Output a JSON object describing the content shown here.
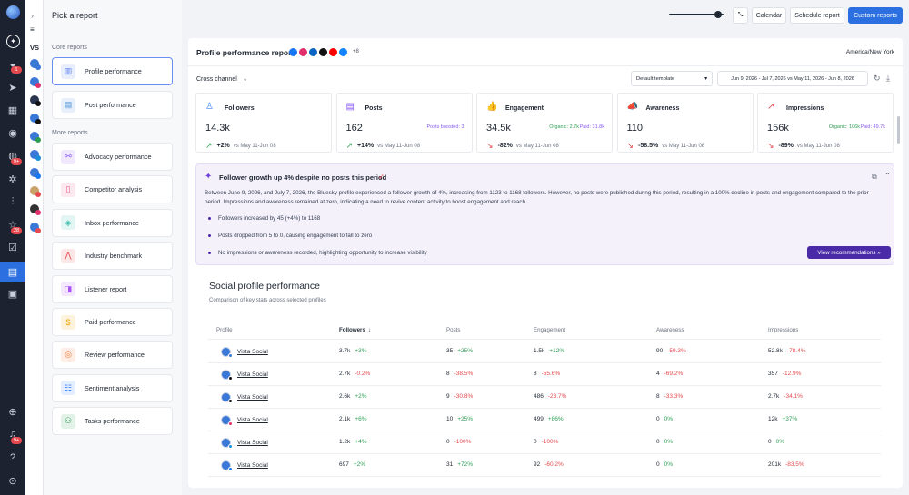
{
  "header": {
    "title": "Pick a report",
    "calendar": "Calendar",
    "schedule": "Schedule report",
    "custom": "Custom reports"
  },
  "rail_badges": {
    "b1": "1",
    "b2": "9+",
    "b3": "28",
    "b4": "9+"
  },
  "profile_strip": {
    "label": "VS"
  },
  "menu": {
    "core_title": "Core reports",
    "more_title": "More reports",
    "core": [
      {
        "label": "Profile performance",
        "icon": "profile-report-icon",
        "color": "#5b7cf0"
      },
      {
        "label": "Post performance",
        "icon": "post-report-icon",
        "color": "#4a8fd8"
      }
    ],
    "more": [
      {
        "label": "Advocacy performance",
        "icon": "advocacy-icon",
        "color": "#8b5cf6"
      },
      {
        "label": "Competitor analysis",
        "icon": "competitor-icon",
        "color": "#e85d8a"
      },
      {
        "label": "Inbox performance",
        "icon": "inbox-icon",
        "color": "#2fb8a6"
      },
      {
        "label": "Industry benchmark",
        "icon": "benchmark-icon",
        "color": "#e5484d"
      },
      {
        "label": "Listener report",
        "icon": "listener-icon",
        "color": "#a855f7"
      },
      {
        "label": "Paid performance",
        "icon": "paid-icon",
        "color": "#f0a500"
      },
      {
        "label": "Review performance",
        "icon": "review-icon",
        "color": "#f07a3a"
      },
      {
        "label": "Sentiment analysis",
        "icon": "sentiment-icon",
        "color": "#3b82f6"
      },
      {
        "label": "Tasks performance",
        "icon": "tasks-icon",
        "color": "#2e9e55"
      }
    ]
  },
  "report": {
    "title": "Profile performance report",
    "network_more": "+8",
    "timezone": "America/New York",
    "channel": "Cross channel",
    "template": "Default template",
    "date_range": "Jun 9, 2026 - Jul 7, 2026 vs May 11, 2026 - Jun 8, 2026"
  },
  "cards": [
    {
      "title": "Followers",
      "value": "14.3k",
      "note": "",
      "note2": "",
      "delta": "+2%",
      "compare": "vs May 11-Jun 08",
      "trend": "up",
      "color": "#3b82f6"
    },
    {
      "title": "Posts",
      "value": "162",
      "note": "Posts boosted: 3",
      "note2": "",
      "delta": "+14%",
      "compare": "vs May 11-Jun 08",
      "trend": "up",
      "color": "#8b5cf6"
    },
    {
      "title": "Engagement",
      "value": "34.5k",
      "note": "Organic: 2.7k",
      "note2": "Paid: 31.8k",
      "delta": "-82%",
      "compare": "vs May 11-Jun 08",
      "trend": "down",
      "color": "#2e9e55"
    },
    {
      "title": "Awareness",
      "value": "110",
      "note": "",
      "note2": "",
      "delta": "-58.5%",
      "compare": "vs May 11-Jun 08",
      "trend": "down",
      "color": "#6d5bd0"
    },
    {
      "title": "Impressions",
      "value": "156k",
      "note": "Organic: 106k",
      "note2": "Paid: 49.7k",
      "delta": "-89%",
      "compare": "vs May 11-Jun 08",
      "trend": "down",
      "color": "#e5484d"
    }
  ],
  "insight": {
    "title": "Follower growth up 4% despite no posts this period",
    "body": "Between June 9, 2026, and July 7, 2026, the Bluesky profile experienced a follower growth of 4%, increasing from 1123 to 1168 followers. However, no posts were published during this period, resulting in a 100% decline in posts and engagement compared to the prior period. Impressions and awareness remained at zero, indicating a need to revive content activity to boost engagement and reach.",
    "bullets": [
      "Followers increased by 45 (+4%) to 1168",
      "Posts dropped from 5 to 0, causing engagement to fall to zero",
      "No impressions or awareness recorded, highlighting opportunity to increase visibility"
    ],
    "button": "View recommendations »"
  },
  "social": {
    "title": "Social profile performance",
    "subtitle": "Comparison of key stats across selected profiles",
    "columns": [
      "Profile",
      "Followers",
      "Posts",
      "Engagement",
      "Awareness",
      "Impressions"
    ],
    "rows": [
      {
        "profile": "Vista Social",
        "net": "#3a78d8",
        "followers": "3.7k",
        "followers_d": "+3%",
        "followers_t": "up",
        "posts": "35",
        "posts_d": "+25%",
        "posts_t": "up",
        "eng": "1.5k",
        "eng_d": "+12%",
        "eng_t": "up",
        "aw": "90",
        "aw_d": "-59.3%",
        "aw_t": "down",
        "imp": "52.8k",
        "imp_d": "-78.4%",
        "imp_t": "down"
      },
      {
        "profile": "Vista Social",
        "net": "#111111",
        "followers": "2.7k",
        "followers_d": "-0.2%",
        "followers_t": "down",
        "posts": "8",
        "posts_d": "-38.5%",
        "posts_t": "down",
        "eng": "8",
        "eng_d": "-55.6%",
        "eng_t": "down",
        "aw": "4",
        "aw_d": "-69.2%",
        "aw_t": "down",
        "imp": "357",
        "imp_d": "-12.9%",
        "imp_t": "down"
      },
      {
        "profile": "Vista Social",
        "net": "#111111",
        "followers": "2.6k",
        "followers_d": "+2%",
        "followers_t": "up",
        "posts": "9",
        "posts_d": "-30.8%",
        "posts_t": "down",
        "eng": "486",
        "eng_d": "-23.7%",
        "eng_t": "down",
        "aw": "8",
        "aw_d": "-33.3%",
        "aw_t": "down",
        "imp": "2.7k",
        "imp_d": "-34.1%",
        "imp_t": "down"
      },
      {
        "profile": "Vista Social",
        "net": "#e1306c",
        "followers": "2.1k",
        "followers_d": "+6%",
        "followers_t": "up",
        "posts": "10",
        "posts_d": "+25%",
        "posts_t": "up",
        "eng": "499",
        "eng_d": "+86%",
        "eng_t": "up",
        "aw": "0",
        "aw_d": "0%",
        "aw_t": "up",
        "imp": "12k",
        "imp_d": "+37%",
        "imp_t": "up"
      },
      {
        "profile": "Vista Social",
        "net": "#1a8cd8",
        "followers": "1.2k",
        "followers_d": "+4%",
        "followers_t": "up",
        "posts": "0",
        "posts_d": "-100%",
        "posts_t": "down",
        "eng": "0",
        "eng_d": "-100%",
        "eng_t": "down",
        "aw": "0",
        "aw_d": "0%",
        "aw_t": "up",
        "imp": "0",
        "imp_d": "0%",
        "imp_t": "up"
      },
      {
        "profile": "Vista Social",
        "net": "#1877f2",
        "followers": "697",
        "followers_d": "+2%",
        "followers_t": "up",
        "posts": "31",
        "posts_d": "+72%",
        "posts_t": "up",
        "eng": "92",
        "eng_d": "-60.2%",
        "eng_t": "down",
        "aw": "0",
        "aw_d": "0%",
        "aw_t": "up",
        "imp": "201k",
        "imp_d": "-83.5%",
        "imp_t": "down"
      }
    ]
  }
}
